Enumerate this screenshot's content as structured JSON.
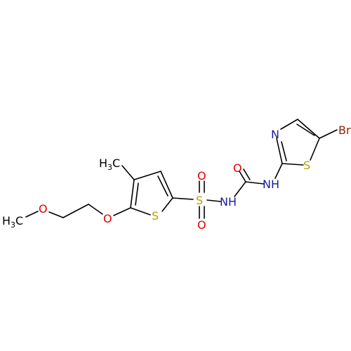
{
  "molecule": {
    "atoms": {
      "br": {
        "label": "Br",
        "element": "Br"
      },
      "s_thiazole": {
        "label": "S",
        "element": "S"
      },
      "n_thiazole": {
        "label": "N",
        "element": "N"
      },
      "nh_1": {
        "label": "NH",
        "element": "N"
      },
      "o_carbonyl": {
        "label": "O",
        "element": "O"
      },
      "nh_2": {
        "label": "NH",
        "element": "N"
      },
      "s_sulfonyl": {
        "label": "S",
        "element": "S"
      },
      "o_sulfonyl_top": {
        "label": "O",
        "element": "O"
      },
      "o_sulfonyl_bottom": {
        "label": "O",
        "element": "O"
      },
      "s_thiophene": {
        "label": "S",
        "element": "S"
      },
      "ch3_methyl": {
        "label": "H",
        "sub": "3",
        "tail": "C",
        "element": "C"
      },
      "o_ether_1": {
        "label": "O",
        "element": "O"
      },
      "o_ether_2": {
        "label": "O",
        "element": "O"
      },
      "ch3_methoxy": {
        "label": "H",
        "sub": "3",
        "tail": "C",
        "element": "C"
      }
    },
    "colors": {
      "carbon": "#000000",
      "nitrogen": "#1a1a99",
      "oxygen": "#e00000",
      "sulfur": "#b3a000",
      "bromine": "#8b2500"
    }
  }
}
